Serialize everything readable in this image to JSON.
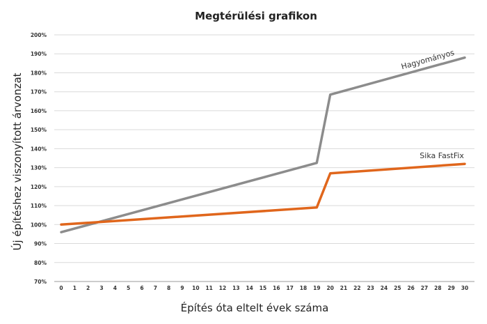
{
  "chart_data": {
    "type": "line",
    "title": "Megtérülési grafikon",
    "xlabel": "Építés óta eltelt évek száma",
    "ylabel": "Új építéshez viszonyított árvonzat",
    "x_ticks": [
      0,
      1,
      2,
      3,
      4,
      5,
      6,
      7,
      8,
      9,
      10,
      11,
      12,
      13,
      14,
      15,
      16,
      17,
      18,
      19,
      20,
      21,
      22,
      23,
      24,
      25,
      26,
      27,
      28,
      29,
      30
    ],
    "xlim": [
      0,
      30
    ],
    "y_ticks": [
      "70%",
      "80%",
      "90%",
      "100%",
      "110%",
      "120%",
      "130%",
      "140%",
      "150%",
      "160%",
      "170%",
      "180%",
      "190%",
      "200%"
    ],
    "ylim": [
      70,
      200
    ],
    "grid": "horizontal",
    "series": [
      {
        "name": "Hagyományos",
        "color": "#8c8c8c",
        "points": [
          [
            0,
            96
          ],
          [
            19,
            132.5
          ],
          [
            20,
            168.5
          ],
          [
            30,
            188
          ]
        ]
      },
      {
        "name": "Sika FastFix",
        "color": "#e0661c",
        "points": [
          [
            0,
            100
          ],
          [
            19,
            109
          ],
          [
            20,
            127
          ],
          [
            30,
            132
          ]
        ]
      }
    ]
  }
}
